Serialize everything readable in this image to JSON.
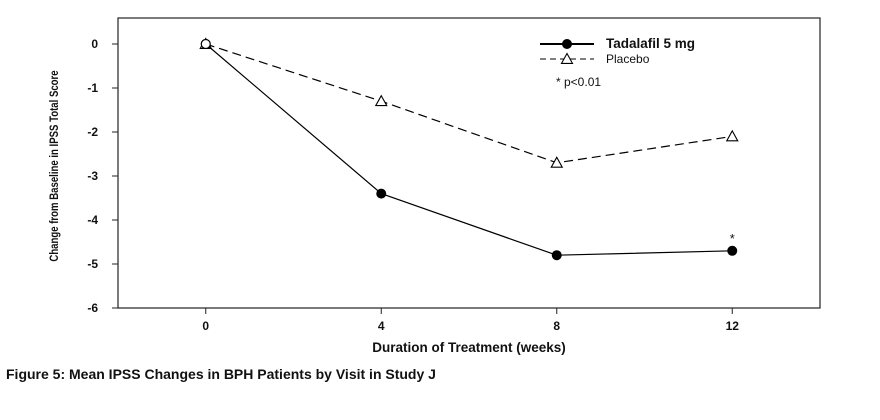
{
  "figure_caption": "Figure 5: Mean IPSS Changes in BPH Patients by Visit in Study J",
  "chart_data": {
    "type": "line",
    "x": [
      0,
      4,
      8,
      12
    ],
    "xlabel": "Duration of Treatment (weeks)",
    "ylabel": "Change from Baseline in IPSS Total Score",
    "xlim": [
      -2,
      14
    ],
    "ylim": [
      -6,
      0.3
    ],
    "xticks": [
      0,
      4,
      8,
      12
    ],
    "yticks": [
      0,
      -1,
      -2,
      -3,
      -4,
      -5,
      -6
    ],
    "grid": false,
    "legend_position": "top-right",
    "series": [
      {
        "name": "Tadalafil 5 mg",
        "values": [
          0,
          -3.4,
          -4.8,
          -4.7
        ],
        "marker": "filled-circle",
        "line_style": "solid",
        "color": "#000000"
      },
      {
        "name": "Placebo",
        "values": [
          0,
          -1.3,
          -2.7,
          -2.1
        ],
        "marker": "open-triangle",
        "line_style": "dashed",
        "color": "#000000"
      }
    ],
    "annotations": [
      {
        "text": "*",
        "x": 12,
        "y": -4.7
      }
    ],
    "legend_note": "* p<0.01"
  }
}
